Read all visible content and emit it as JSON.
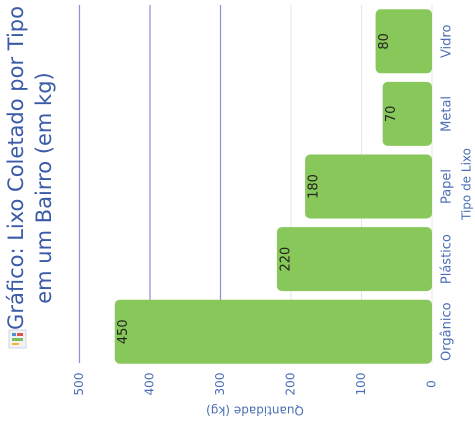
{
  "colors": {
    "bar": "#88c75a",
    "grid": "#8b8fd6",
    "grid_light": "#e6e6e6",
    "title": "#3b5aa8",
    "axis_text": "#4a6fb5"
  },
  "icon": "chart-icon",
  "chart_data": {
    "type": "bar",
    "orientation": "horizontal",
    "title_lines": [
      "Gráfico: Lixo Coletado por Tipo",
      "em um Bairro (em kg)"
    ],
    "xlabel": "Quantidade (kg)",
    "ylabel": "Tipo de Lixo",
    "categories": [
      "Vidro",
      "Metal",
      "Papel",
      "Plástico",
      "Orgânico"
    ],
    "values": [
      80,
      70,
      180,
      220,
      450
    ],
    "value_labels": [
      "80",
      "70",
      "180",
      "220",
      "450"
    ],
    "xlim": [
      0,
      500
    ],
    "x_ticks": [
      0,
      100,
      200,
      300,
      400,
      500
    ],
    "x_tick_labels": [
      "0",
      "100",
      "200",
      "300",
      "400",
      "500"
    ],
    "grid": true
  }
}
